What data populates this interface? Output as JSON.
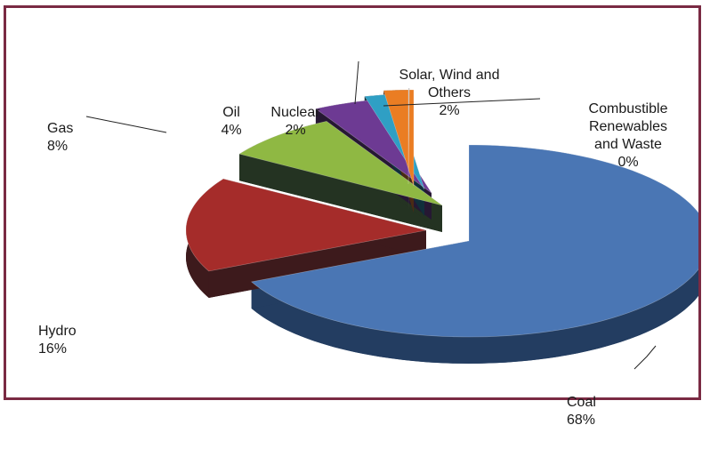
{
  "chart_data": {
    "type": "pie",
    "style": "3d-exploded",
    "title": "",
    "slices": [
      {
        "label": "Coal",
        "value": 68,
        "pct_label": "68%",
        "color": "#4a76b4",
        "side_color": "#233d61"
      },
      {
        "label": "Hydro",
        "value": 16,
        "pct_label": "16%",
        "color": "#a52c2a",
        "side_color": "#3d1a1c"
      },
      {
        "label": "Gas",
        "value": 8,
        "pct_label": "8%",
        "color": "#8fb843",
        "side_color": "#243322"
      },
      {
        "label": "Oil",
        "value": 4,
        "pct_label": "4%",
        "color": "#6d3a93",
        "side_color": "#261833"
      },
      {
        "label": "Nuclear",
        "value": 2,
        "pct_label": "2%",
        "color": "#2f9fc4",
        "side_color": "#102f3b"
      },
      {
        "label": "Solar, Wind and Others",
        "value": 2,
        "pct_label": "2%",
        "color": "#ea7d23",
        "side_color": "#4a2a14"
      },
      {
        "label": "Combustible Renewables and Waste",
        "value": 0,
        "pct_label": "0%",
        "color": "#bfbfbf",
        "side_color": "#555555"
      }
    ]
  },
  "frame_color": "#7a2a43"
}
